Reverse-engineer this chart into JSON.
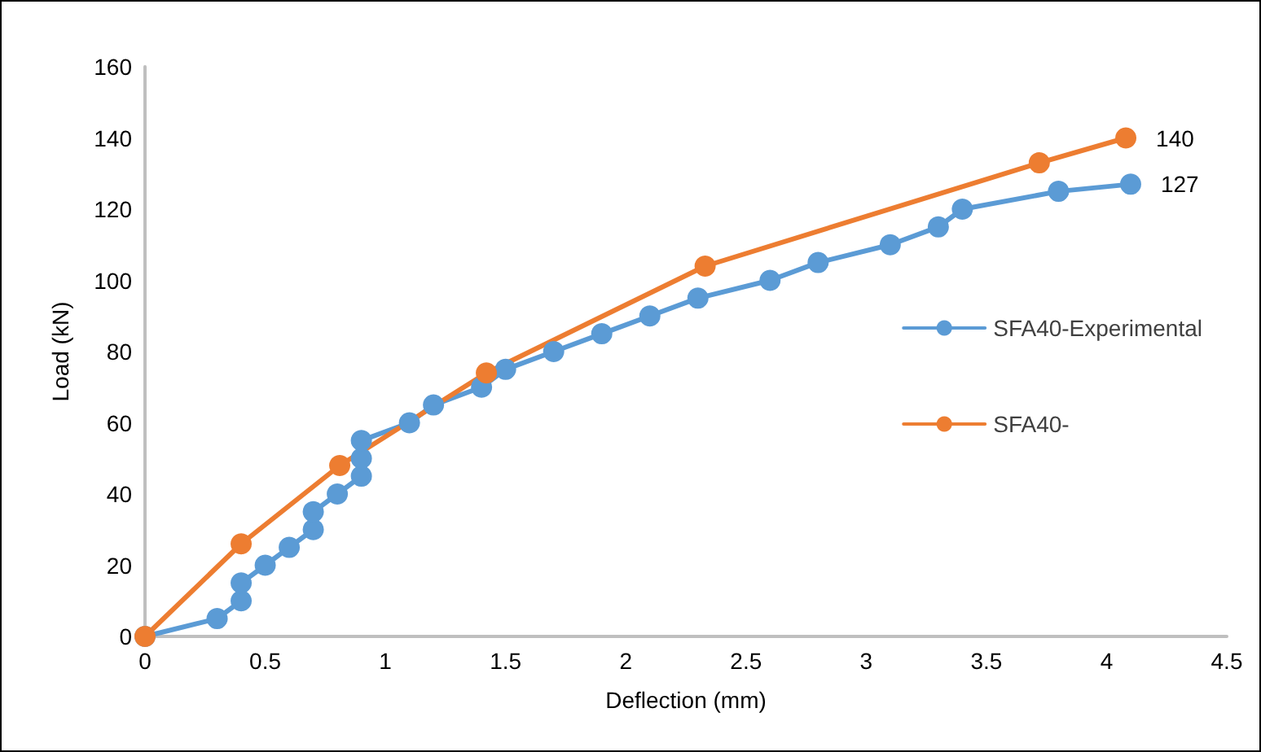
{
  "chart_data": {
    "type": "line",
    "xlabel": "Deflection (mm)",
    "ylabel": "Load (kN)",
    "xlim": [
      0,
      4.5
    ],
    "xticks": [
      0,
      0.5,
      1,
      1.5,
      2,
      2.5,
      3,
      3.5,
      4,
      4.5
    ],
    "ylim": [
      0,
      160
    ],
    "yticks": [
      0,
      20,
      40,
      60,
      80,
      100,
      120,
      140,
      160
    ],
    "grid": false,
    "legend": "right",
    "marker": "circle",
    "line_style": "solid",
    "series": [
      {
        "name": "SFA40-Experimental",
        "color": "#5b9bd5",
        "x": [
          0,
          0.3,
          0.4,
          0.4,
          0.5,
          0.6,
          0.7,
          0.7,
          0.8,
          0.9,
          0.9,
          0.9,
          1.1,
          1.2,
          1.4,
          1.5,
          1.7,
          1.9,
          2.1,
          2.3,
          2.6,
          2.8,
          3.1,
          3.3,
          3.4,
          3.8,
          4.1
        ],
        "values": [
          0,
          5,
          10,
          15,
          20,
          25,
          30,
          35,
          40,
          45,
          50,
          55,
          60,
          65,
          70,
          75,
          80,
          85,
          90,
          95,
          100,
          105,
          110,
          115,
          120,
          125,
          127
        ],
        "value_labels": [
          null,
          null,
          null,
          null,
          null,
          null,
          null,
          null,
          null,
          null,
          null,
          null,
          null,
          null,
          null,
          null,
          null,
          null,
          null,
          null,
          null,
          null,
          null,
          null,
          null,
          null,
          "127"
        ]
      },
      {
        "name": "SFA40-",
        "color": "#ed7d31",
        "x": [
          0,
          0.4,
          0.81,
          1.42,
          2.33,
          3.72,
          4.08
        ],
        "values": [
          0,
          26,
          48,
          74,
          104,
          133,
          140
        ],
        "value_labels": [
          null,
          null,
          null,
          null,
          null,
          null,
          "140"
        ]
      }
    ]
  }
}
